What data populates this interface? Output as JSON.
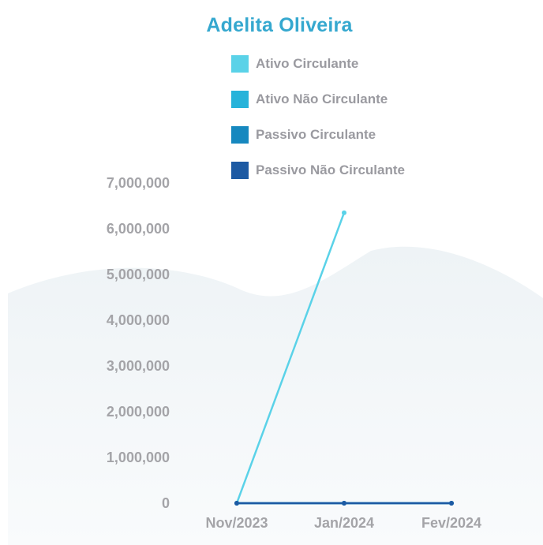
{
  "chart_data": {
    "type": "line",
    "title": "Adelita Oliveira",
    "xlabel": "",
    "ylabel": "",
    "categories": [
      "Nov/2023",
      "Jan/2024",
      "Fev/2024"
    ],
    "ylim": [
      0,
      7000000
    ],
    "yticks": [
      0,
      1000000,
      2000000,
      3000000,
      4000000,
      5000000,
      6000000,
      7000000
    ],
    "ytick_labels": [
      "0",
      "1,000,000",
      "2,000,000",
      "3,000,000",
      "4,000,000",
      "5,000,000",
      "6,000,000",
      "7,000,000"
    ],
    "legend_position": "top",
    "grid": false,
    "series": [
      {
        "name": "Ativo Circulante",
        "color": "#5ad2e8",
        "values": [
          0,
          6350000,
          null
        ]
      },
      {
        "name": "Ativo Não Circulante",
        "color": "#27b3da",
        "values": [
          0,
          0,
          0
        ]
      },
      {
        "name": "Passivo Circulante",
        "color": "#1688bf",
        "values": [
          0,
          0,
          0
        ]
      },
      {
        "name": "Passivo Não Circulante",
        "color": "#1d5aa3",
        "values": [
          0,
          0,
          0
        ]
      }
    ]
  }
}
